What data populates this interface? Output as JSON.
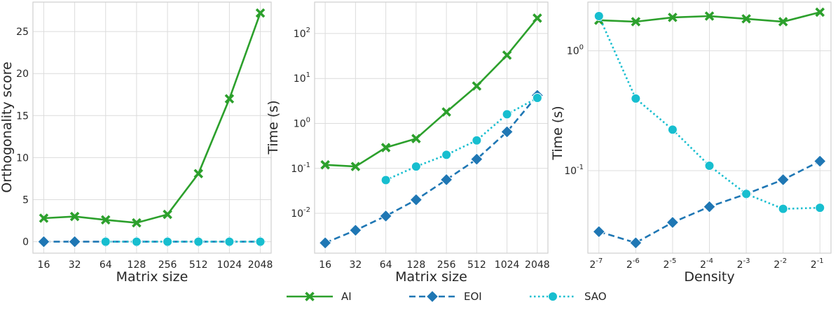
{
  "chart_data": [
    {
      "type": "line",
      "xlabel": "Matrix size",
      "ylabel": "Orthogonality score",
      "yscale": "linear",
      "categories": [
        "16",
        "32",
        "64",
        "128",
        "256",
        "512",
        "1024",
        "2048"
      ],
      "ylim": [
        -1.36,
        28.5
      ],
      "yticks": [
        0,
        5,
        10,
        15,
        20,
        25
      ],
      "ytick_labels": [
        "0",
        "5",
        "10",
        "15",
        "20",
        "25"
      ],
      "grid": true,
      "series": [
        {
          "name": "AI",
          "values": [
            2.8,
            3.0,
            2.6,
            2.25,
            3.25,
            8.1,
            17.0,
            27.2
          ]
        },
        {
          "name": "EOI",
          "values": [
            0.0,
            0.0,
            0.0,
            0.0,
            0.0,
            0.0,
            0.0,
            0.0
          ]
        },
        {
          "name": "SAO",
          "values": [
            null,
            null,
            0.0,
            0.0,
            0.0,
            0.0,
            0.0,
            0.0
          ]
        }
      ]
    },
    {
      "type": "line",
      "xlabel": "Matrix size",
      "ylabel": "Time (s)",
      "yscale": "log",
      "categories": [
        "16",
        "32",
        "64",
        "128",
        "256",
        "512",
        "1024",
        "2048"
      ],
      "ylim": [
        0.0013,
        500
      ],
      "yticks": [
        0.01,
        0.1,
        1,
        10,
        100
      ],
      "ytick_base": [
        "10",
        "10",
        "10",
        "10",
        "10"
      ],
      "ytick_exp": [
        "-2",
        "-1",
        "0",
        "1",
        "2"
      ],
      "grid": true,
      "series": [
        {
          "name": "AI",
          "values": [
            0.12,
            0.11,
            0.29,
            0.46,
            1.8,
            6.8,
            33,
            220
          ]
        },
        {
          "name": "EOI",
          "values": [
            0.0022,
            0.0042,
            0.0087,
            0.02,
            0.056,
            0.16,
            0.65,
            4.2
          ]
        },
        {
          "name": "SAO",
          "values": [
            null,
            null,
            0.055,
            0.11,
            0.2,
            0.42,
            1.6,
            3.7
          ]
        }
      ]
    },
    {
      "type": "line",
      "xlabel": "Density",
      "ylabel": "Time (s)",
      "yscale": "log",
      "categories": [
        "-7",
        "-6",
        "-5",
        "-4",
        "-3",
        "-2",
        "-1"
      ],
      "category_base": "2",
      "ylim": [
        0.0205,
        2.55
      ],
      "yticks": [
        0.1,
        1
      ],
      "ytick_base": [
        "10",
        "10"
      ],
      "ytick_exp": [
        "-1",
        "0"
      ],
      "grid": true,
      "series": [
        {
          "name": "AI",
          "values": [
            1.8,
            1.75,
            1.9,
            1.95,
            1.85,
            1.75,
            2.1
          ]
        },
        {
          "name": "EOI",
          "values": [
            0.031,
            0.025,
            0.037,
            0.05,
            0.064,
            0.084,
            0.12
          ]
        },
        {
          "name": "SAO",
          "values": [
            1.95,
            0.4,
            0.22,
            0.11,
            0.064,
            0.048,
            0.049
          ]
        }
      ]
    }
  ],
  "legend": {
    "placement": "bottom-center",
    "entries": [
      {
        "name": "AI",
        "color": "#2ca02c",
        "marker": "x",
        "dash": "solid"
      },
      {
        "name": "EOI",
        "color": "#1f77b4",
        "marker": "diamond",
        "dash": "dashed"
      },
      {
        "name": "SAO",
        "color": "#17becf",
        "marker": "circle",
        "dash": "dotted"
      }
    ]
  }
}
